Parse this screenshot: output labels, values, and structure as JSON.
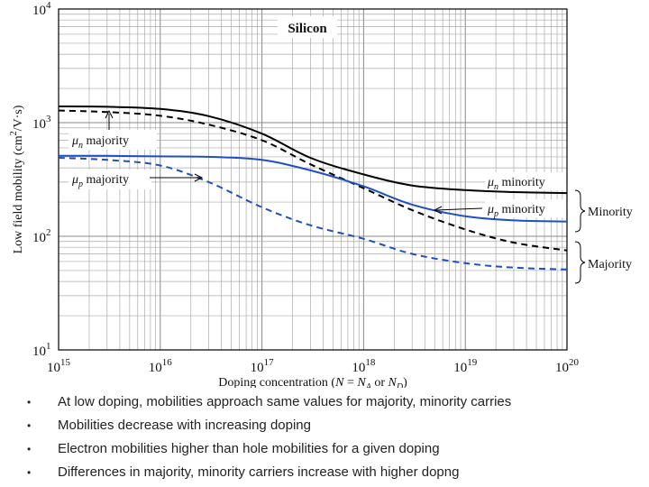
{
  "chart_data": {
    "type": "line",
    "title": "Silicon",
    "xlabel": "Doping concentration (N = N_A or N_D)",
    "ylabel": "Low field mobility (cm²/V·s)",
    "xscale": "log",
    "yscale": "log",
    "xlim": [
      1000000000000000.0,
      1e+20
    ],
    "ylim": [
      10,
      10000
    ],
    "x_ticks": [
      {
        "value": 1000000000000000.0,
        "base": "10",
        "exp": "15"
      },
      {
        "value": 1e+16,
        "base": "10",
        "exp": "16"
      },
      {
        "value": 1e+17,
        "base": "10",
        "exp": "17"
      },
      {
        "value": 1e+18,
        "base": "10",
        "exp": "18"
      },
      {
        "value": 1e+19,
        "base": "10",
        "exp": "19"
      },
      {
        "value": 1e+20,
        "base": "10",
        "exp": "20"
      }
    ],
    "y_ticks": [
      {
        "value": 10,
        "base": "10",
        "exp": "1"
      },
      {
        "value": 100,
        "base": "10",
        "exp": "2"
      },
      {
        "value": 1000,
        "base": "10",
        "exp": "3"
      },
      {
        "value": 10000,
        "base": "10",
        "exp": "4"
      }
    ],
    "series": [
      {
        "name": "μn minority",
        "color": "#000000",
        "dash": "solid",
        "x": [
          1000000000000000.0,
          3000000000000000.0,
          1e+16,
          3e+16,
          1e+17,
          3e+17,
          1e+18,
          3e+18,
          1e+19,
          3e+19,
          1e+20
        ],
        "y": [
          1390,
          1380,
          1320,
          1140,
          800,
          490,
          350,
          280,
          255,
          245,
          240
        ]
      },
      {
        "name": "μn majority",
        "color": "#000000",
        "dash": "dashed",
        "x": [
          1000000000000000.0,
          3000000000000000.0,
          1e+16,
          3e+16,
          1e+17,
          3e+17,
          1e+18,
          3e+18,
          1e+19,
          3e+19,
          1e+20
        ],
        "y": [
          1280,
          1240,
          1150,
          960,
          700,
          430,
          265,
          170,
          115,
          88,
          75
        ]
      },
      {
        "name": "μp minority",
        "color": "#1f4fc0",
        "dash": "solid",
        "x": [
          1000000000000000.0,
          3000000000000000.0,
          1e+16,
          3e+16,
          1e+17,
          3e+17,
          1e+18,
          3e+18,
          1e+19,
          3e+19,
          1e+20
        ],
        "y": [
          510,
          510,
          505,
          500,
          470,
          380,
          275,
          190,
          150,
          138,
          135
        ]
      },
      {
        "name": "μp majority",
        "color": "#1f4fc0",
        "dash": "dashed",
        "x": [
          1000000000000000.0,
          3000000000000000.0,
          1e+16,
          3e+16,
          1e+17,
          3e+17,
          1e+18,
          3e+18,
          1e+19,
          3e+19,
          1e+20
        ],
        "y": [
          490,
          470,
          420,
          300,
          180,
          125,
          95,
          70,
          58,
          53,
          51
        ]
      }
    ],
    "annotations": {
      "title": "Silicon",
      "mu_n_majority": {
        "symbol": "μ",
        "sub": "n",
        "text": " majority"
      },
      "mu_p_majority": {
        "symbol": "μ",
        "sub": "p",
        "text": " majority"
      },
      "mu_n_minority": {
        "symbol": "μ",
        "sub": "n",
        "text": " minority"
      },
      "mu_p_minority": {
        "symbol": "μ",
        "sub": "p",
        "text": " minority"
      },
      "group_minority": "Minority",
      "group_majority": "Majority"
    },
    "xlabel_parts": {
      "main": "Doping concentration (",
      "n": "N",
      "eq": " = ",
      "na": "N",
      "na_sub": "A",
      "or": " or ",
      "nd": "N",
      "nd_sub": "D",
      "close": ")"
    },
    "ylabel_parts": {
      "main": "Low field mobility (cm",
      "sup": "2",
      "rest": "/V·s)"
    }
  },
  "bullets": [
    "At low doping, mobilities approach same values for majority, minority carries",
    "Mobilities decrease with increasing doping",
    "Electron mobilities higher than hole mobilities for a given doping",
    "Differences in majority, minority carriers increase with higher dopng"
  ],
  "bullet_glyph": "•"
}
